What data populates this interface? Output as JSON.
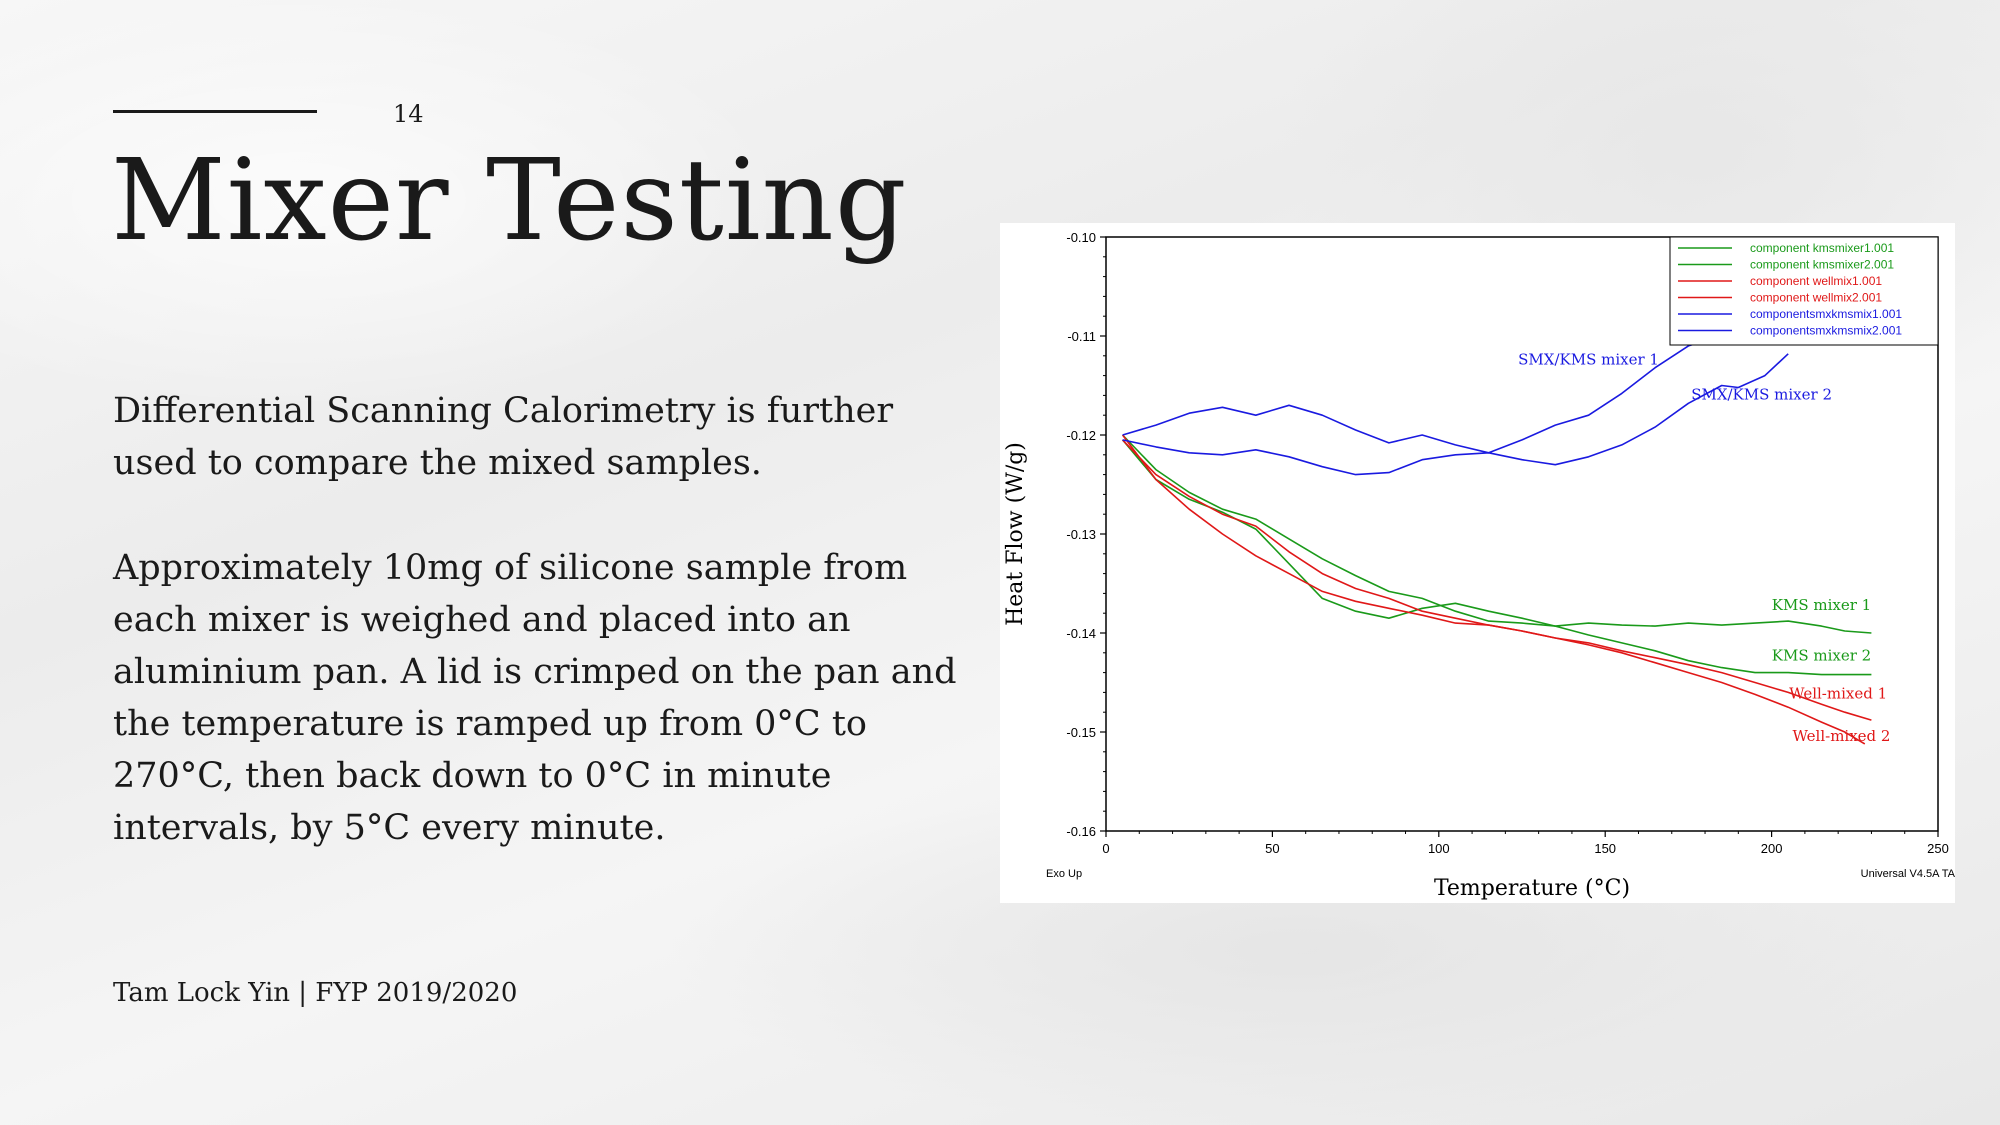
{
  "slide": {
    "page_number": "14",
    "title": "Mixer Testing",
    "paragraphs": [
      "Differential Scanning Calorimetry is further used to compare the mixed samples.",
      "Approximately 10mg of silicone sample from each mixer is weighed and placed into an aluminium pan. A lid is crimped on the pan and the temperature is ramped up from 0°C to 270°C, then back down to 0°C in minute intervals, by 5°C every minute."
    ],
    "footer": "Tam Lock Yin | FYP 2019/2020"
  },
  "chart_data": {
    "type": "line",
    "xlabel": "Temperature (°C)",
    "ylabel": "Heat Flow (W/g)",
    "xlim": [
      0,
      250
    ],
    "ylim": [
      -0.16,
      -0.1
    ],
    "x_ticks": [
      "0",
      "50",
      "100",
      "150",
      "200",
      "250"
    ],
    "y_ticks": [
      "-0.10",
      "-0.11",
      "-0.12",
      "-0.13",
      "-0.14",
      "-0.15",
      "-0.16"
    ],
    "corner_left": "Exo Up",
    "corner_right": "Universal V4.5A TA",
    "grid": false,
    "legend_position": "top-right",
    "series": [
      {
        "name": "component kmsmixer1.001",
        "color": "#1a9a1a",
        "annotation": "KMS mixer 1",
        "annotation_at": [
          215,
          -0.1377
        ],
        "points": [
          [
            5,
            -0.12
          ],
          [
            15,
            -0.1235
          ],
          [
            25,
            -0.1258
          ],
          [
            35,
            -0.1275
          ],
          [
            45,
            -0.1285
          ],
          [
            55,
            -0.1305
          ],
          [
            65,
            -0.1325
          ],
          [
            75,
            -0.1342
          ],
          [
            85,
            -0.1358
          ],
          [
            95,
            -0.1365
          ],
          [
            105,
            -0.1378
          ],
          [
            115,
            -0.1388
          ],
          [
            125,
            -0.139
          ],
          [
            135,
            -0.1393
          ],
          [
            145,
            -0.139
          ],
          [
            155,
            -0.1392
          ],
          [
            165,
            -0.1393
          ],
          [
            175,
            -0.139
          ],
          [
            185,
            -0.1392
          ],
          [
            195,
            -0.139
          ],
          [
            205,
            -0.1388
          ],
          [
            215,
            -0.1393
          ],
          [
            222,
            -0.1398
          ],
          [
            230,
            -0.14
          ]
        ]
      },
      {
        "name": "component kmsmixer2.001",
        "color": "#1a9a1a",
        "annotation": "KMS mixer 2",
        "annotation_at": [
          215,
          -0.1428
        ],
        "points": [
          [
            5,
            -0.1205
          ],
          [
            15,
            -0.1245
          ],
          [
            25,
            -0.1265
          ],
          [
            35,
            -0.1278
          ],
          [
            45,
            -0.1295
          ],
          [
            55,
            -0.133
          ],
          [
            65,
            -0.1365
          ],
          [
            75,
            -0.1378
          ],
          [
            85,
            -0.1385
          ],
          [
            95,
            -0.1375
          ],
          [
            105,
            -0.137
          ],
          [
            115,
            -0.1378
          ],
          [
            125,
            -0.1385
          ],
          [
            135,
            -0.1393
          ],
          [
            145,
            -0.1402
          ],
          [
            155,
            -0.141
          ],
          [
            165,
            -0.1418
          ],
          [
            175,
            -0.1428
          ],
          [
            185,
            -0.1435
          ],
          [
            195,
            -0.144
          ],
          [
            205,
            -0.144
          ],
          [
            215,
            -0.1442
          ],
          [
            222,
            -0.1442
          ],
          [
            230,
            -0.1442
          ]
        ]
      },
      {
        "name": "component wellmix1.001",
        "color": "#e01818",
        "annotation": "Well-mixed 1",
        "annotation_at": [
          220,
          -0.1466
        ],
        "points": [
          [
            5,
            -0.1205
          ],
          [
            15,
            -0.124
          ],
          [
            25,
            -0.1262
          ],
          [
            35,
            -0.128
          ],
          [
            45,
            -0.1292
          ],
          [
            55,
            -0.1318
          ],
          [
            65,
            -0.134
          ],
          [
            75,
            -0.1355
          ],
          [
            85,
            -0.1365
          ],
          [
            95,
            -0.1378
          ],
          [
            105,
            -0.1385
          ],
          [
            115,
            -0.1392
          ],
          [
            125,
            -0.1398
          ],
          [
            135,
            -0.1405
          ],
          [
            145,
            -0.141
          ],
          [
            155,
            -0.1418
          ],
          [
            165,
            -0.1425
          ],
          [
            175,
            -0.1432
          ],
          [
            185,
            -0.144
          ],
          [
            195,
            -0.145
          ],
          [
            205,
            -0.146
          ],
          [
            215,
            -0.1472
          ],
          [
            222,
            -0.148
          ],
          [
            230,
            -0.1488
          ]
        ]
      },
      {
        "name": "component wellmix2.001",
        "color": "#e01818",
        "annotation": "Well-mixed 2",
        "annotation_at": [
          221,
          -0.1509
        ],
        "points": [
          [
            5,
            -0.12
          ],
          [
            15,
            -0.1245
          ],
          [
            25,
            -0.1275
          ],
          [
            35,
            -0.13
          ],
          [
            45,
            -0.1322
          ],
          [
            55,
            -0.134
          ],
          [
            65,
            -0.1358
          ],
          [
            75,
            -0.1368
          ],
          [
            85,
            -0.1375
          ],
          [
            95,
            -0.1382
          ],
          [
            105,
            -0.139
          ],
          [
            115,
            -0.1392
          ],
          [
            125,
            -0.1398
          ],
          [
            135,
            -0.1405
          ],
          [
            145,
            -0.1412
          ],
          [
            155,
            -0.142
          ],
          [
            165,
            -0.143
          ],
          [
            175,
            -0.144
          ],
          [
            185,
            -0.145
          ],
          [
            195,
            -0.1462
          ],
          [
            205,
            -0.1475
          ],
          [
            215,
            -0.149
          ],
          [
            222,
            -0.15
          ],
          [
            228,
            -0.1512
          ]
        ]
      },
      {
        "name": "componentsmxkmsmix1.001",
        "color": "#1a1ae0",
        "annotation": "SMX/KMS mixer 1",
        "annotation_at": [
          145,
          -0.1129
        ],
        "points": [
          [
            5,
            -0.12
          ],
          [
            15,
            -0.119
          ],
          [
            25,
            -0.1178
          ],
          [
            35,
            -0.1172
          ],
          [
            45,
            -0.118
          ],
          [
            55,
            -0.117
          ],
          [
            65,
            -0.118
          ],
          [
            75,
            -0.1195
          ],
          [
            85,
            -0.1208
          ],
          [
            95,
            -0.12
          ],
          [
            105,
            -0.121
          ],
          [
            115,
            -0.1218
          ],
          [
            125,
            -0.1205
          ],
          [
            135,
            -0.119
          ],
          [
            145,
            -0.118
          ],
          [
            155,
            -0.1158
          ],
          [
            165,
            -0.1132
          ],
          [
            175,
            -0.111
          ],
          [
            185,
            -0.11
          ]
        ]
      },
      {
        "name": "componentsmxkmsmix2.001",
        "color": "#1a1ae0",
        "annotation": "SMX/KMS mixer 2",
        "annotation_at": [
          197,
          -0.1164
        ],
        "points": [
          [
            5,
            -0.1205
          ],
          [
            15,
            -0.1212
          ],
          [
            25,
            -0.1218
          ],
          [
            35,
            -0.122
          ],
          [
            45,
            -0.1215
          ],
          [
            55,
            -0.1222
          ],
          [
            65,
            -0.1232
          ],
          [
            75,
            -0.124
          ],
          [
            85,
            -0.1238
          ],
          [
            95,
            -0.1225
          ],
          [
            105,
            -0.122
          ],
          [
            115,
            -0.1218
          ],
          [
            125,
            -0.1225
          ],
          [
            135,
            -0.123
          ],
          [
            145,
            -0.1222
          ],
          [
            155,
            -0.121
          ],
          [
            165,
            -0.1192
          ],
          [
            175,
            -0.1168
          ],
          [
            185,
            -0.115
          ],
          [
            190,
            -0.1152
          ],
          [
            198,
            -0.114
          ],
          [
            205,
            -0.1118
          ]
        ]
      }
    ]
  }
}
